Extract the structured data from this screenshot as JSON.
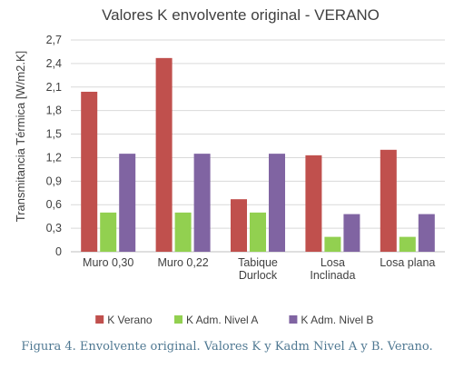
{
  "chart_data": {
    "type": "bar",
    "title": "Valores K envolvente original - VERANO",
    "xlabel": "",
    "ylabel": "Transmitancia Térmica [W/m2.K]",
    "ylim": [
      0,
      2.7
    ],
    "yticks": [
      "0",
      "0,3",
      "0,6",
      "0,9",
      "1,2",
      "1,5",
      "1,8",
      "2,1",
      "2,4",
      "2,7"
    ],
    "categories": [
      [
        "Muro 0,30"
      ],
      [
        "Muro 0,22"
      ],
      [
        "Tabique",
        "Durlock"
      ],
      [
        "Losa",
        "Inclinada"
      ],
      [
        "Losa plana"
      ]
    ],
    "series": [
      {
        "name": "K Verano",
        "color": "#c0504d",
        "values": [
          2.04,
          2.47,
          0.67,
          1.23,
          1.3
        ]
      },
      {
        "name": "K Adm. Nivel A",
        "color": "#92d050",
        "values": [
          0.5,
          0.5,
          0.5,
          0.19,
          0.19
        ]
      },
      {
        "name": "K Adm. Nivel B",
        "color": "#8064a2",
        "values": [
          1.25,
          1.25,
          1.25,
          0.48,
          0.48
        ]
      }
    ],
    "grid": true,
    "legend_position": "bottom"
  },
  "caption": "Figura 4. Envolvente original. Valores K y Kadm Nivel A y B. Verano."
}
